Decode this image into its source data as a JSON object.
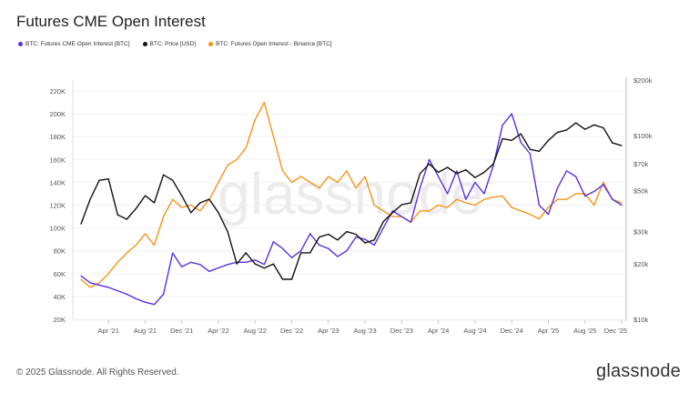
{
  "header": {
    "title": "Futures CME Open Interest"
  },
  "footer": {
    "copyright": "© 2025 Glassnode. All Rights Reserved.",
    "brand": "glassnode"
  },
  "watermark": "glassnode",
  "chart_data": {
    "type": "line",
    "title": "Futures CME Open Interest",
    "legend_placement": "top-left",
    "grid": true,
    "x": [
      "2021-01",
      "2021-02",
      "2021-03",
      "2021-04",
      "2021-05",
      "2021-06",
      "2021-07",
      "2021-08",
      "2021-09",
      "2021-10",
      "2021-11",
      "2021-12",
      "2022-01",
      "2022-02",
      "2022-03",
      "2022-04",
      "2022-05",
      "2022-06",
      "2022-07",
      "2022-08",
      "2022-09",
      "2022-10",
      "2022-11",
      "2022-12",
      "2023-01",
      "2023-02",
      "2023-03",
      "2023-04",
      "2023-05",
      "2023-06",
      "2023-07",
      "2023-08",
      "2023-09",
      "2023-10",
      "2023-11",
      "2023-12",
      "2024-01",
      "2024-02",
      "2024-03",
      "2024-04",
      "2024-05",
      "2024-06",
      "2024-07",
      "2024-08",
      "2024-09",
      "2024-10",
      "2024-11",
      "2024-12",
      "2025-01",
      "2025-02",
      "2025-03",
      "2025-04",
      "2025-05",
      "2025-06",
      "2025-07",
      "2025-08",
      "2025-09",
      "2025-10",
      "2025-11",
      "2025-12"
    ],
    "x_ticks": [
      {
        "label": "Apr '21",
        "at": "2021-04"
      },
      {
        "label": "Aug '21",
        "at": "2021-08"
      },
      {
        "label": "Dec '21",
        "at": "2021-12"
      },
      {
        "label": "Apr '22",
        "at": "2022-04"
      },
      {
        "label": "Aug '22",
        "at": "2022-08"
      },
      {
        "label": "Dec '22",
        "at": "2022-12"
      },
      {
        "label": "Apr '23",
        "at": "2023-04"
      },
      {
        "label": "Aug '23",
        "at": "2023-08"
      },
      {
        "label": "Dec '23",
        "at": "2023-12"
      },
      {
        "label": "Apr '24",
        "at": "2024-04"
      },
      {
        "label": "Aug '24",
        "at": "2024-08"
      },
      {
        "label": "Dec '24",
        "at": "2024-12"
      },
      {
        "label": "Apr '25",
        "at": "2025-04"
      },
      {
        "label": "Aug '25",
        "at": "2025-08"
      },
      {
        "label": "Dec '25",
        "at": "2025-12"
      }
    ],
    "y_left": {
      "unit": "BTC",
      "ylim": [
        20000,
        220000
      ],
      "ticks": [
        20000,
        40000,
        60000,
        80000,
        100000,
        120000,
        140000,
        160000,
        180000,
        200000,
        220000
      ],
      "tick_labels": [
        "20K",
        "40K",
        "60K",
        "80K",
        "100K",
        "120K",
        "140K",
        "160K",
        "180K",
        "200K",
        "220K"
      ]
    },
    "y_right": {
      "unit": "USD",
      "scale": "log",
      "ylim": [
        10000,
        200000
      ],
      "ticks": [
        10000,
        20000,
        30000,
        50000,
        70000,
        100000,
        200000
      ],
      "tick_labels": [
        "$10k",
        "$20k",
        "$30k",
        "$50k",
        "$70k",
        "$100k",
        "$200k"
      ]
    },
    "series": [
      {
        "name": "BTC: Futures CME Open Interest [BTC]",
        "axis": "left",
        "color": "#5b2ee6",
        "values": [
          58000,
          52000,
          50000,
          48000,
          45000,
          42000,
          38000,
          35000,
          33000,
          42000,
          78000,
          66000,
          70000,
          68000,
          62000,
          65000,
          68000,
          70000,
          70000,
          72000,
          68000,
          88000,
          82000,
          74000,
          80000,
          95000,
          85000,
          82000,
          75000,
          80000,
          92000,
          90000,
          85000,
          100000,
          115000,
          110000,
          105000,
          135000,
          160000,
          145000,
          130000,
          150000,
          125000,
          140000,
          130000,
          155000,
          190000,
          200000,
          175000,
          165000,
          120000,
          112000,
          135000,
          150000,
          145000,
          128000,
          132000,
          138000,
          125000,
          120000
        ]
      },
      {
        "name": "BTC: Price [USD]",
        "axis": "right",
        "color": "#111111",
        "values": [
          33000,
          45000,
          57000,
          58000,
          37000,
          35000,
          40000,
          47000,
          43000,
          61000,
          57000,
          47000,
          38000,
          43000,
          45000,
          38000,
          30000,
          20000,
          23000,
          20000,
          19000,
          20000,
          16500,
          16500,
          23000,
          23000,
          28000,
          29000,
          27000,
          30000,
          29000,
          26000,
          27000,
          34000,
          38000,
          42000,
          43000,
          62000,
          70000,
          63000,
          67000,
          62000,
          65000,
          59000,
          63000,
          70000,
          96000,
          94000,
          102000,
          84000,
          82000,
          94000,
          104000,
          107000,
          117000,
          108000,
          114000,
          110000,
          91000,
          88000
        ]
      },
      {
        "name": "BTC: Futures Open Interest - Binance [BTC]",
        "axis": "left",
        "color": "#f7931a",
        "values": [
          55000,
          48000,
          52000,
          60000,
          70000,
          78000,
          85000,
          95000,
          85000,
          110000,
          125000,
          118000,
          120000,
          115000,
          125000,
          140000,
          155000,
          160000,
          170000,
          195000,
          210000,
          180000,
          150000,
          140000,
          145000,
          140000,
          135000,
          145000,
          140000,
          150000,
          135000,
          145000,
          120000,
          115000,
          110000,
          110000,
          105000,
          115000,
          115000,
          120000,
          118000,
          125000,
          122000,
          120000,
          125000,
          127000,
          128000,
          118000,
          115000,
          112000,
          108000,
          118000,
          125000,
          125000,
          130000,
          130000,
          120000,
          140000,
          125000,
          122000
        ]
      }
    ]
  }
}
